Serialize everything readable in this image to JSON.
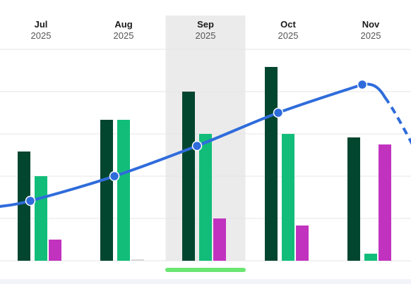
{
  "months": [
    {
      "label": "Jul",
      "year": "2025"
    },
    {
      "label": "Aug",
      "year": "2025"
    },
    {
      "label": "Sep",
      "year": "2025"
    },
    {
      "label": "Oct",
      "year": "2025"
    },
    {
      "label": "Nov",
      "year": "2025"
    }
  ],
  "colors": {
    "dark_green": "#03462f",
    "green": "#12bd7a",
    "magenta": "#c133bf",
    "line": "#2f6cdb",
    "highlight": "#ebebeb",
    "grid": "#e6e6e6",
    "indicator": "#6ae673"
  },
  "selected_month_index": 2,
  "chart_data": {
    "type": "bar",
    "categories": [
      "Jul 2025",
      "Aug 2025",
      "Sep 2025",
      "Oct 2025",
      "Nov 2025"
    ],
    "ylim": [
      0,
      300
    ],
    "grid": true,
    "series": [
      {
        "values": [
          155,
          200,
          240,
          275,
          175
        ],
        "color": "#03462f"
      },
      {
        "values": [
          120,
          200,
          180,
          180,
          10
        ],
        "color": "#12bd7a"
      },
      {
        "values": [
          30,
          2,
          60,
          50,
          165
        ],
        "color": "#c133bf"
      }
    ],
    "line": {
      "values": [
        85,
        120,
        163,
        210,
        250
      ],
      "color": "#2f6cdb",
      "forecast_after_last": true
    }
  }
}
